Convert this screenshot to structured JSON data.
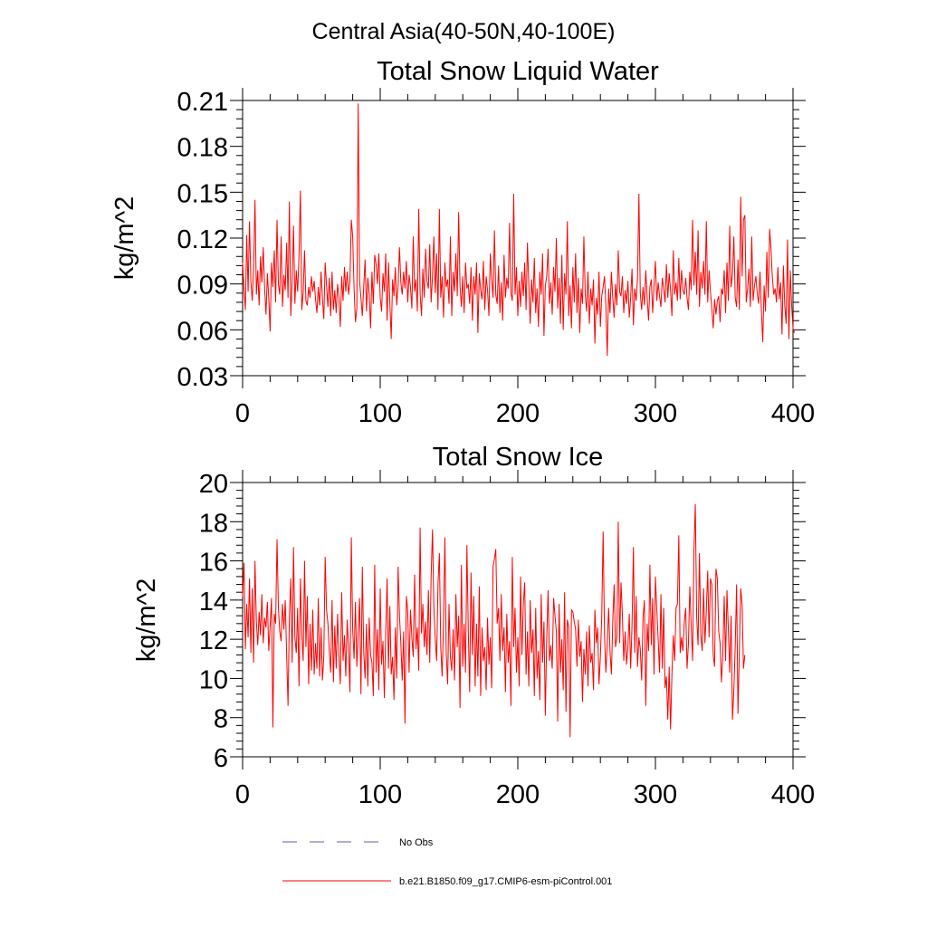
{
  "figure_title": "Central Asia(40-50N,40-100E)",
  "legend": [
    {
      "label": "No Obs",
      "color": "#5b5fa8",
      "dash": true
    },
    {
      "label": "b.e21.B1850.f09_g17.CMIP6-esm-piControl.001",
      "color": "#ff0000",
      "dash": false
    }
  ],
  "chart_data": [
    {
      "type": "line",
      "title": "Total Snow Liquid Water",
      "xlabel": "",
      "ylabel": "kg/m^2",
      "xlim": [
        0,
        400
      ],
      "ylim": [
        0.03,
        0.21
      ],
      "xticks": [
        0,
        100,
        200,
        300,
        400
      ],
      "xtick_labels": [
        "0",
        "100",
        "200",
        "300",
        "400"
      ],
      "yticks": [
        0.03,
        0.06,
        0.09,
        0.12,
        0.15,
        0.18,
        0.21
      ],
      "ytick_labels": [
        "0.03",
        "0.06",
        "0.09",
        "0.12",
        "0.15",
        "0.18",
        "0.21"
      ],
      "series": [
        {
          "name": "b.e21.B1850.f09_g17.CMIP6-esm-piControl.001",
          "color": "#ff0000",
          "x_start": 0,
          "x_step": 1,
          "values": [
            0.104,
            0.087,
            0.073,
            0.122,
            0.085,
            0.131,
            0.092,
            0.079,
            0.101,
            0.145,
            0.083,
            0.099,
            0.076,
            0.108,
            0.091,
            0.114,
            0.087,
            0.07,
            0.097,
            0.081,
            0.059,
            0.104,
            0.088,
            0.112,
            0.078,
            0.132,
            0.09,
            0.083,
            0.121,
            0.075,
            0.096,
            0.086,
            0.117,
            0.081,
            0.144,
            0.069,
            0.091,
            0.128,
            0.077,
            0.099,
            0.085,
            0.109,
            0.151,
            0.073,
            0.084,
            0.112,
            0.079,
            0.076,
            0.088,
            0.081,
            0.095,
            0.085,
            0.092,
            0.08,
            0.071,
            0.088,
            0.076,
            0.098,
            0.081,
            0.067,
            0.104,
            0.089,
            0.075,
            0.094,
            0.069,
            0.098,
            0.073,
            0.086,
            0.071,
            0.09,
            0.081,
            0.062,
            0.095,
            0.079,
            0.101,
            0.085,
            0.098,
            0.083,
            0.092,
            0.132,
            0.121,
            0.087,
            0.065,
            0.074,
            0.208,
            0.092,
            0.081,
            0.069,
            0.088,
            0.106,
            0.072,
            0.094,
            0.083,
            0.061,
            0.098,
            0.077,
            0.109,
            0.103,
            0.09,
            0.11,
            0.081,
            0.072,
            0.097,
            0.085,
            0.11,
            0.066,
            0.104,
            0.078,
            0.054,
            0.093,
            0.082,
            0.101,
            0.076,
            0.089,
            0.114,
            0.091,
            0.083,
            0.098,
            0.087,
            0.105,
            0.078,
            0.096,
            0.088,
            0.074,
            0.121,
            0.085,
            0.093,
            0.072,
            0.139,
            0.084,
            0.069,
            0.1,
            0.081,
            0.113,
            0.092,
            0.087,
            0.116,
            0.078,
            0.095,
            0.121,
            0.084,
            0.11,
            0.073,
            0.139,
            0.081,
            0.095,
            0.068,
            0.104,
            0.088,
            0.093,
            0.077,
            0.121,
            0.069,
            0.098,
            0.085,
            0.11,
            0.082,
            0.137,
            0.089,
            0.075,
            0.095,
            0.071,
            0.104,
            0.087,
            0.09,
            0.077,
            0.101,
            0.066,
            0.095,
            0.083,
            0.104,
            0.058,
            0.097,
            0.086,
            0.08,
            0.105,
            0.073,
            0.095,
            0.086,
            0.069,
            0.11,
            0.093,
            0.081,
            0.125,
            0.083,
            0.077,
            0.102,
            0.071,
            0.091,
            0.066,
            0.109,
            0.081,
            0.094,
            0.087,
            0.13,
            0.084,
            0.079,
            0.149,
            0.083,
            0.101,
            0.069,
            0.092,
            0.075,
            0.098,
            0.082,
            0.104,
            0.073,
            0.117,
            0.089,
            0.064,
            0.093,
            0.078,
            0.107,
            0.071,
            0.087,
            0.062,
            0.098,
            0.083,
            0.11,
            0.056,
            0.089,
            0.095,
            0.113,
            0.077,
            0.091,
            0.07,
            0.101,
            0.085,
            0.12,
            0.074,
            0.094,
            0.064,
            0.109,
            0.06,
            0.097,
            0.083,
            0.131,
            0.069,
            0.089,
            0.061,
            0.101,
            0.078,
            0.11,
            0.071,
            0.094,
            0.058,
            0.087,
            0.077,
            0.121,
            0.083,
            0.072,
            0.098,
            0.064,
            0.087,
            0.076,
            0.093,
            0.051,
            0.081,
            0.07,
            0.098,
            0.062,
            0.082,
            0.088,
            0.095,
            0.075,
            0.043,
            0.087,
            0.071,
            0.098,
            0.081,
            0.068,
            0.09,
            0.076,
            0.112,
            0.085,
            0.082,
            0.095,
            0.071,
            0.086,
            0.077,
            0.092,
            0.068,
            0.081,
            0.1,
            0.063,
            0.087,
            0.079,
            0.094,
            0.149,
            0.084,
            0.073,
            0.088,
            0.076,
            0.099,
            0.081,
            0.066,
            0.088,
            0.093,
            0.071,
            0.089,
            0.105,
            0.079,
            0.091,
            0.082,
            0.075,
            0.094,
            0.087,
            0.078,
            0.103,
            0.081,
            0.097,
            0.086,
            0.069,
            0.112,
            0.083,
            0.091,
            0.079,
            0.107,
            0.08,
            0.099,
            0.086,
            0.083,
            0.094,
            0.081,
            0.073,
            0.098,
            0.086,
            0.132,
            0.089,
            0.111,
            0.083,
            0.125,
            0.075,
            0.098,
            0.087,
            0.105,
            0.083,
            0.131,
            0.078,
            0.099,
            0.085,
            0.074,
            0.061,
            0.08,
            0.07,
            0.079,
            0.082,
            0.065,
            0.087,
            0.083,
            0.099,
            0.071,
            0.104,
            0.079,
            0.128,
            0.088,
            0.096,
            0.121,
            0.081,
            0.075,
            0.106,
            0.073,
            0.147,
            0.095,
            0.132,
            0.135,
            0.078,
            0.087,
            0.1,
            0.075,
            0.121,
            0.079,
            0.089,
            0.095,
            0.084,
            0.077,
            0.098,
            0.073,
            0.052,
            0.089,
            0.072,
            0.111,
            0.081,
            0.126,
            0.113,
            0.094,
            0.083,
            0.087,
            0.078,
            0.101,
            0.08,
            0.091,
            0.057,
            0.102,
            0.076,
            0.064,
            0.119,
            0.054,
            0.099,
            0.076,
            0.061,
            0.058
          ]
        }
      ]
    },
    {
      "type": "line",
      "title": "Total Snow Ice",
      "xlabel": "",
      "ylabel": "kg/m^2",
      "xlim": [
        0,
        400
      ],
      "ylim": [
        6,
        20
      ],
      "xticks": [
        0,
        100,
        200,
        300,
        400
      ],
      "xtick_labels": [
        "0",
        "100",
        "200",
        "300",
        "400"
      ],
      "yticks": [
        6,
        8,
        10,
        12,
        14,
        16,
        18,
        20
      ],
      "ytick_labels": [
        "6",
        "8",
        "10",
        "12",
        "14",
        "16",
        "18",
        "20"
      ],
      "series": [
        {
          "name": "b.e21.B1850.f09_g17.CMIP6-esm-piControl.001",
          "color": "#ff0000",
          "x_start": 0,
          "x_step": 1,
          "values": [
            14.2,
            15.9,
            11.5,
            13.8,
            12.1,
            15.1,
            11.3,
            14.6,
            10.8,
            16.0,
            12.9,
            11.7,
            13.4,
            12.2,
            14.3,
            11.8,
            13.1,
            12.6,
            13.9,
            11.4,
            12.7,
            14.1,
            7.5,
            13.3,
            12.8,
            17.1,
            13.6,
            12.4,
            11.9,
            13.8,
            12.5,
            14.0,
            11.2,
            8.6,
            13.2,
            15.1,
            10.8,
            16.7,
            12.1,
            11.3,
            13.6,
            9.6,
            15.1,
            12.3,
            10.9,
            16.0,
            11.6,
            14.2,
            9.7,
            12.8,
            10.4,
            13.5,
            10.2,
            11.8,
            10.5,
            14.1,
            10.1,
            12.6,
            9.9,
            11.1,
            16.2,
            13.5,
            12.8,
            11.4,
            10.3,
            14.0,
            9.8,
            12.7,
            10.5,
            13.3,
            11.2,
            9.7,
            14.4,
            10.9,
            12.2,
            10.1,
            13.0,
            11.6,
            9.3,
            17.2,
            12.5,
            11.0,
            13.9,
            10.6,
            12.3,
            14.1,
            9.2,
            15.7,
            11.4,
            10.0,
            12.8,
            9.6,
            13.1,
            11.2,
            10.8,
            9.1,
            15.8,
            10.3,
            12.5,
            9.4,
            14.6,
            10.7,
            11.9,
            9.0,
            12.3,
            15.1,
            10.5,
            13.7,
            10.2,
            11.1,
            8.9,
            12.6,
            10.0,
            15.7,
            13.2,
            11.8,
            9.9,
            12.4,
            7.7,
            14.2,
            13.4,
            10.3,
            13.5,
            12.1,
            11.1,
            15.3,
            11.5,
            12.6,
            10.4,
            17.7,
            12.3,
            13.8,
            11.6,
            12.9,
            11.2,
            14.5,
            10.8,
            15.2,
            17.6,
            13.6,
            12.0,
            10.9,
            14.8,
            16.4,
            11.6,
            10.1,
            12.9,
            17.2,
            11.3,
            9.7,
            13.8,
            11.1,
            10.4,
            12.5,
            9.9,
            14.3,
            11.6,
            13.2,
            8.5,
            15.8,
            10.6,
            12.8,
            10.3,
            16.8,
            12.5,
            9.3,
            15.4,
            11.2,
            14.2,
            9.6,
            12.8,
            10.1,
            14.7,
            9.1,
            12.6,
            10.9,
            11.6,
            9.4,
            13.1,
            10.7,
            12.1,
            9.5,
            15.7,
            16.1,
            16.6,
            12.8,
            13.6,
            10.9,
            14.3,
            11.4,
            12.6,
            9.3,
            13.3,
            10.8,
            11.9,
            8.6,
            16.2,
            11.6,
            13.6,
            10.3,
            12.1,
            9.6,
            15.2,
            11.2,
            13.8,
            14.9,
            10.2,
            12.4,
            9.6,
            14.0,
            11.3,
            12.5,
            9.1,
            13.6,
            10.0,
            11.4,
            8.9,
            14.3,
            10.8,
            12.9,
            8.1,
            12.0,
            14.5,
            10.9,
            11.7,
            10.5,
            14.1,
            13.2,
            12.4,
            7.8,
            13.8,
            10.3,
            12.0,
            9.4,
            14.4,
            8.3,
            13.0,
            12.6,
            7.0,
            13.5,
            13.4,
            12.9,
            12.5,
            10.6,
            13.0,
            11.1,
            11.9,
            8.8,
            11.5,
            10.2,
            12.4,
            9.6,
            12.7,
            10.8,
            11.3,
            9.4,
            13.5,
            11.8,
            12.6,
            9.7,
            11.1,
            13.2,
            17.5,
            12.2,
            10.3,
            11.8,
            13.6,
            11.4,
            10.2,
            12.9,
            14.8,
            11.6,
            12.1,
            18.0,
            11.8,
            14.9,
            13.2,
            10.9,
            12.4,
            10.7,
            11.6,
            13.3,
            10.5,
            12.7,
            16.7,
            11.3,
            14.2,
            10.6,
            12.1,
            11.5,
            9.9,
            13.1,
            14.0,
            8.6,
            12.8,
            11.4,
            15.8,
            11.7,
            14.1,
            10.2,
            15.2,
            13.5,
            12.0,
            10.3,
            14.3,
            10.5,
            13.6,
            9.5,
            10.1,
            7.9,
            10.6,
            7.4,
            10.2,
            12.2,
            10.9,
            13.6,
            13.8,
            17.3,
            11.3,
            12.1,
            11.4,
            12.9,
            13.6,
            10.5,
            11.8,
            14.7,
            12.7,
            10.9,
            16.5,
            18.9,
            13.1,
            11.7,
            16.4,
            12.2,
            11.4,
            14.6,
            11.8,
            13.5,
            15.5,
            12.1,
            15.1,
            14.8,
            11.2,
            10.6,
            15.6,
            15.1,
            12.4,
            11.8,
            9.8,
            11.3,
            14.2,
            10.9,
            14.5,
            12.5,
            10.3,
            13.2,
            7.9,
            9.4,
            11.6,
            14.8,
            8.2,
            11.4,
            14.6,
            13.8,
            10.5,
            11.2
          ]
        }
      ]
    }
  ]
}
